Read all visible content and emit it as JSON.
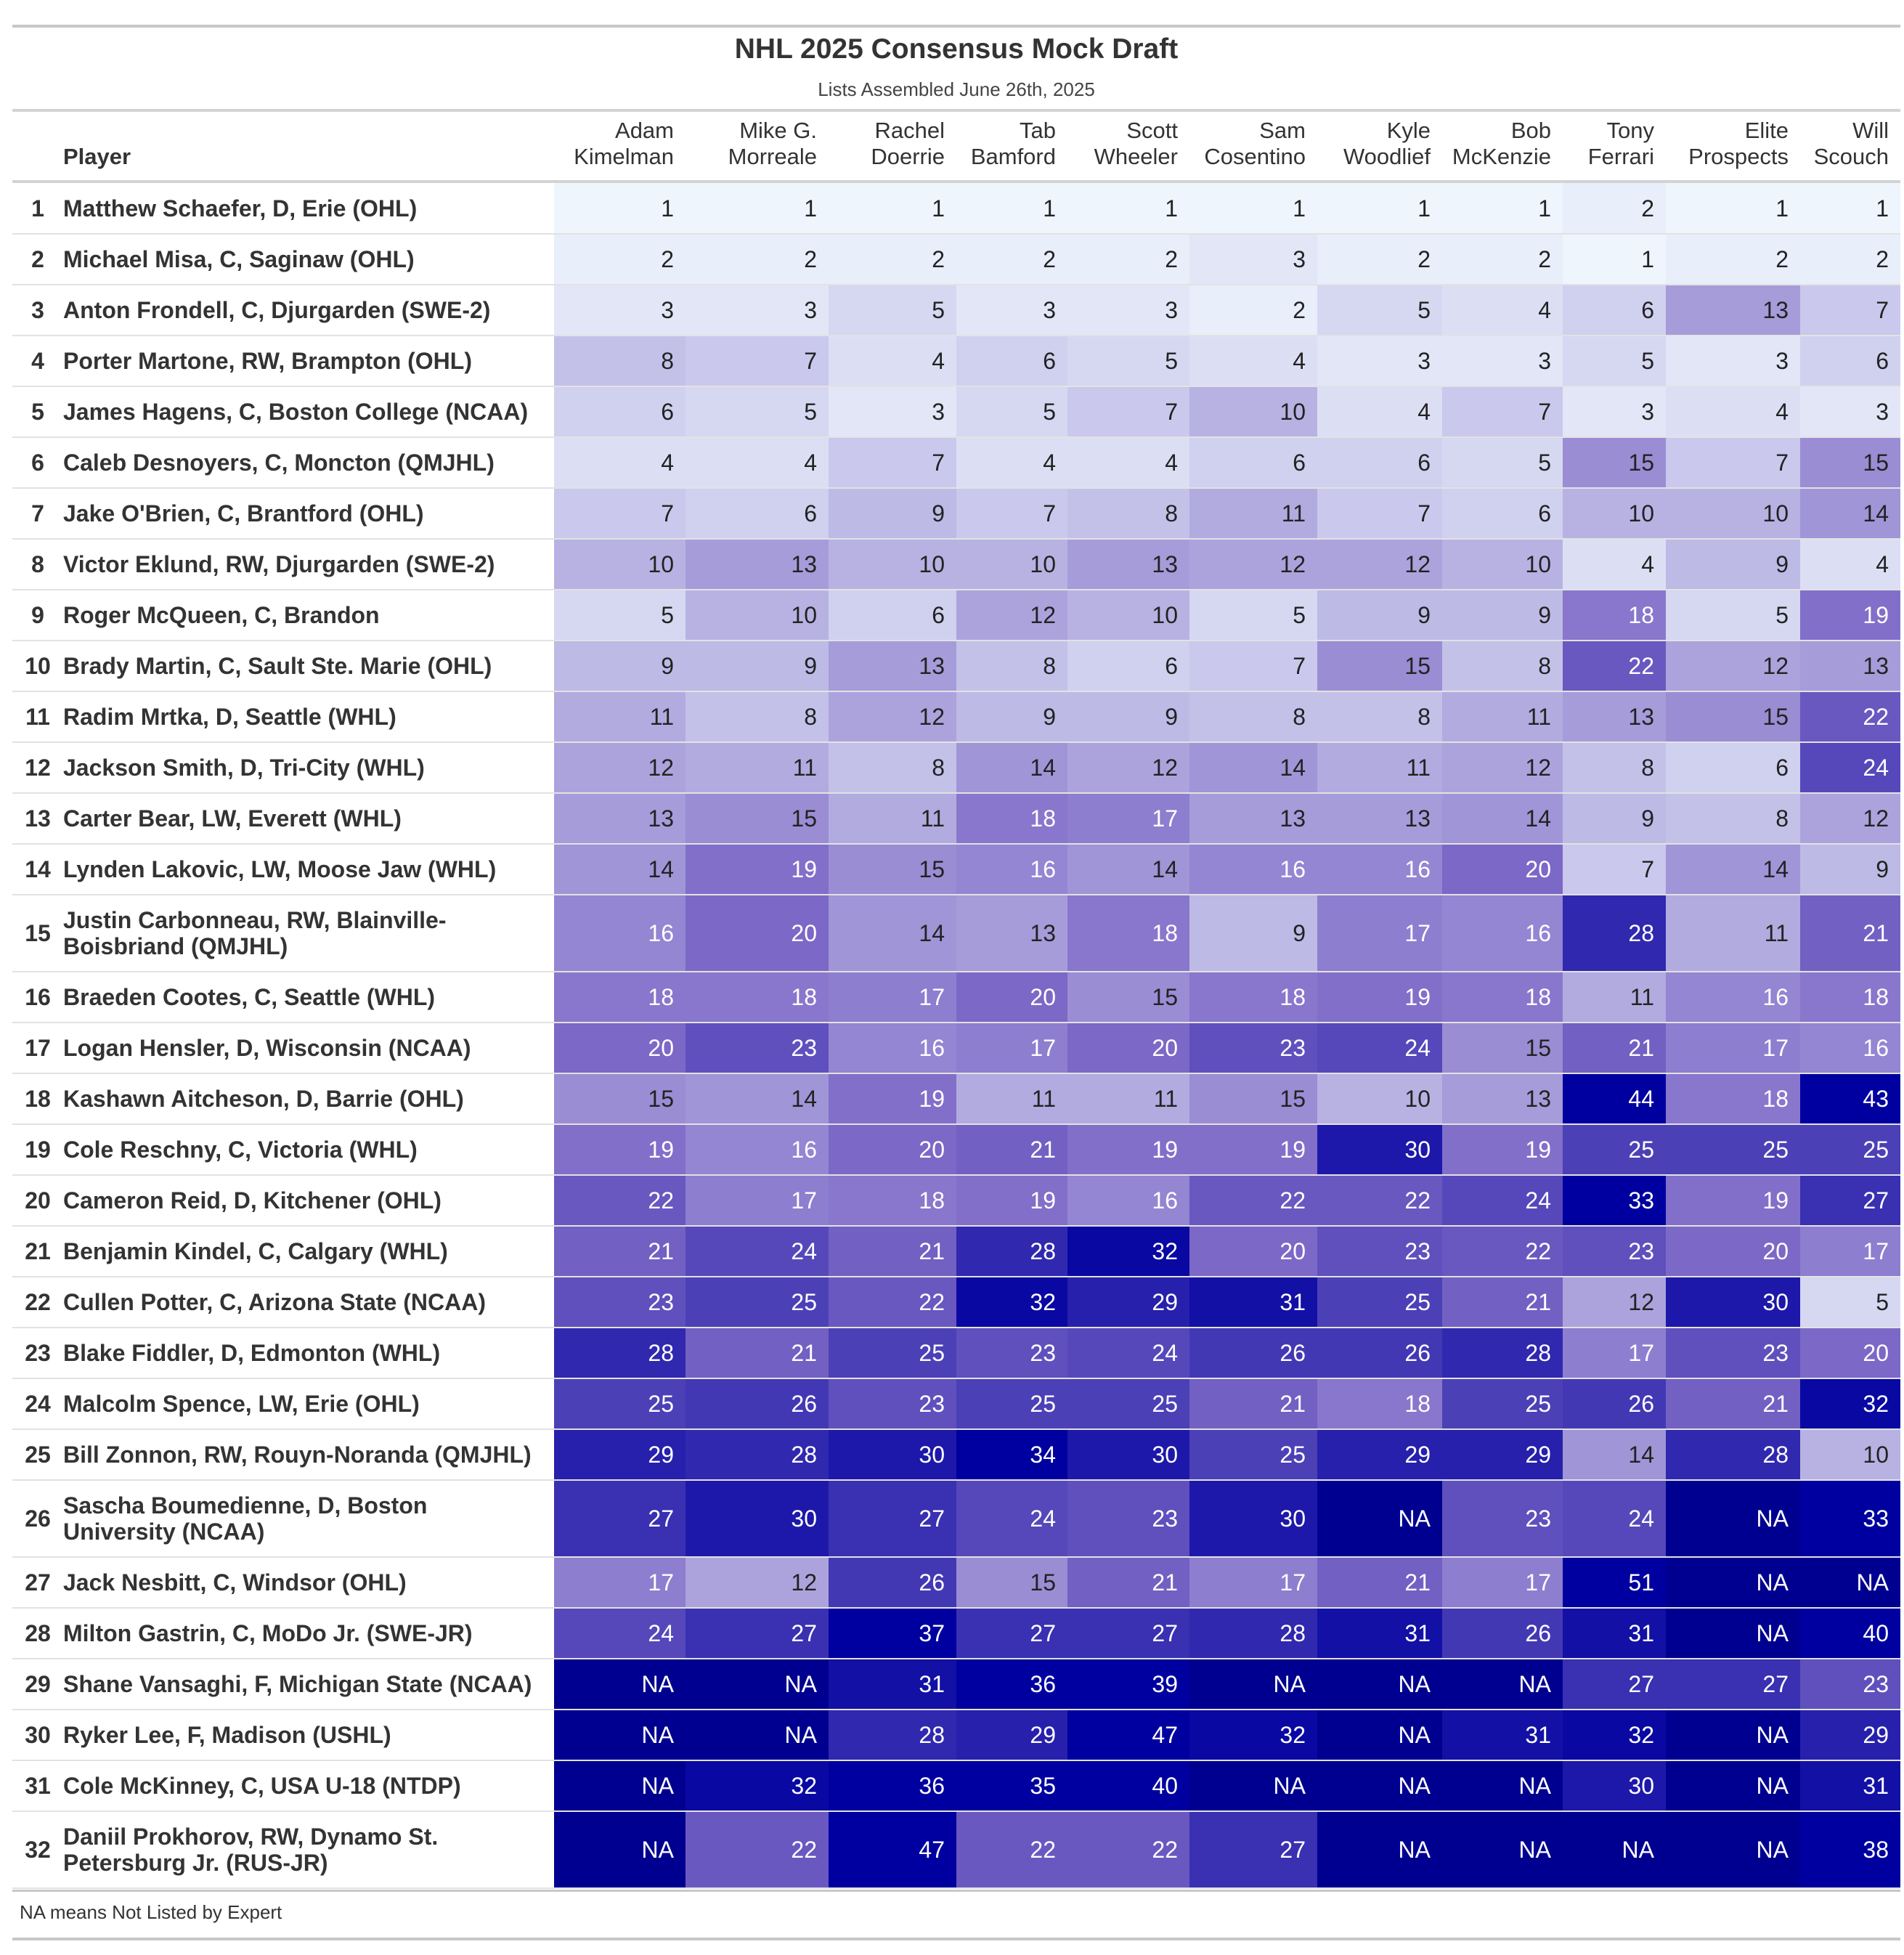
{
  "chart_data": {
    "type": "table",
    "title": "NHL 2025 Consensus Mock Draft",
    "subtitle": "Lists Assembled June 26th, 2025",
    "player_header": "Player",
    "experts": [
      [
        "Adam",
        "Kimelman"
      ],
      [
        "Mike G.",
        "Morreale"
      ],
      [
        "Rachel",
        "Doerrie"
      ],
      [
        "Tab",
        "Bamford"
      ],
      [
        "Scott",
        "Wheeler"
      ],
      [
        "Sam",
        "Cosentino"
      ],
      [
        "Kyle",
        "Woodlief"
      ],
      [
        "Bob",
        "McKenzie"
      ],
      [
        "Tony",
        "Ferrari"
      ],
      [
        "Elite",
        "Prospects"
      ],
      [
        "Will",
        "Scouch"
      ]
    ],
    "rows": [
      {
        "rank": "1",
        "player": [
          "Matthew Schaefer, D, Erie (OHL)"
        ],
        "picks": [
          "1",
          "1",
          "1",
          "1",
          "1",
          "1",
          "1",
          "1",
          "2",
          "1",
          "1"
        ]
      },
      {
        "rank": "2",
        "player": [
          "Michael Misa, C, Saginaw (OHL)"
        ],
        "picks": [
          "2",
          "2",
          "2",
          "2",
          "2",
          "3",
          "2",
          "2",
          "1",
          "2",
          "2"
        ]
      },
      {
        "rank": "3",
        "player": [
          "Anton Frondell, C, Djurgarden (SWE-2)"
        ],
        "picks": [
          "3",
          "3",
          "5",
          "3",
          "3",
          "2",
          "5",
          "4",
          "6",
          "13",
          "7"
        ]
      },
      {
        "rank": "4",
        "player": [
          "Porter Martone, RW, Brampton (OHL)"
        ],
        "picks": [
          "8",
          "7",
          "4",
          "6",
          "5",
          "4",
          "3",
          "3",
          "5",
          "3",
          "6"
        ]
      },
      {
        "rank": "5",
        "player": [
          "James Hagens, C, Boston College (NCAA)"
        ],
        "picks": [
          "6",
          "5",
          "3",
          "5",
          "7",
          "10",
          "4",
          "7",
          "3",
          "4",
          "3"
        ]
      },
      {
        "rank": "6",
        "player": [
          "Caleb Desnoyers, C, Moncton (QMJHL)"
        ],
        "picks": [
          "4",
          "4",
          "7",
          "4",
          "4",
          "6",
          "6",
          "5",
          "15",
          "7",
          "15"
        ]
      },
      {
        "rank": "7",
        "player": [
          "Jake O'Brien, C, Brantford (OHL)"
        ],
        "picks": [
          "7",
          "6",
          "9",
          "7",
          "8",
          "11",
          "7",
          "6",
          "10",
          "10",
          "14"
        ]
      },
      {
        "rank": "8",
        "player": [
          "Victor Eklund, RW, Djurgarden (SWE-2)"
        ],
        "picks": [
          "10",
          "13",
          "10",
          "10",
          "13",
          "12",
          "12",
          "10",
          "4",
          "9",
          "4"
        ]
      },
      {
        "rank": "9",
        "player": [
          "Roger McQueen, C, Brandon"
        ],
        "picks": [
          "5",
          "10",
          "6",
          "12",
          "10",
          "5",
          "9",
          "9",
          "18",
          "5",
          "19"
        ]
      },
      {
        "rank": "10",
        "player": [
          "Brady Martin, C, Sault Ste. Marie (OHL)"
        ],
        "picks": [
          "9",
          "9",
          "13",
          "8",
          "6",
          "7",
          "15",
          "8",
          "22",
          "12",
          "13"
        ]
      },
      {
        "rank": "11",
        "player": [
          "Radim Mrtka, D, Seattle (WHL)"
        ],
        "picks": [
          "11",
          "8",
          "12",
          "9",
          "9",
          "8",
          "8",
          "11",
          "13",
          "15",
          "22"
        ]
      },
      {
        "rank": "12",
        "player": [
          "Jackson Smith, D, Tri-City (WHL)"
        ],
        "picks": [
          "12",
          "11",
          "8",
          "14",
          "12",
          "14",
          "11",
          "12",
          "8",
          "6",
          "24"
        ]
      },
      {
        "rank": "13",
        "player": [
          "Carter Bear, LW, Everett (WHL)"
        ],
        "picks": [
          "13",
          "15",
          "11",
          "18",
          "17",
          "13",
          "13",
          "14",
          "9",
          "8",
          "12"
        ]
      },
      {
        "rank": "14",
        "player": [
          "Lynden Lakovic, LW, Moose Jaw (WHL)"
        ],
        "picks": [
          "14",
          "19",
          "15",
          "16",
          "14",
          "16",
          "16",
          "20",
          "7",
          "14",
          "9"
        ]
      },
      {
        "rank": "15",
        "player": [
          "Justin Carbonneau, RW, Blainville-",
          "Boisbriand (QMJHL)"
        ],
        "picks": [
          "16",
          "20",
          "14",
          "13",
          "18",
          "9",
          "17",
          "16",
          "28",
          "11",
          "21"
        ]
      },
      {
        "rank": "16",
        "player": [
          "Braeden Cootes, C, Seattle (WHL)"
        ],
        "picks": [
          "18",
          "18",
          "17",
          "20",
          "15",
          "18",
          "19",
          "18",
          "11",
          "16",
          "18"
        ]
      },
      {
        "rank": "17",
        "player": [
          "Logan Hensler, D, Wisconsin (NCAA)"
        ],
        "picks": [
          "20",
          "23",
          "16",
          "17",
          "20",
          "23",
          "24",
          "15",
          "21",
          "17",
          "16"
        ]
      },
      {
        "rank": "18",
        "player": [
          "Kashawn Aitcheson, D, Barrie (OHL)"
        ],
        "picks": [
          "15",
          "14",
          "19",
          "11",
          "11",
          "15",
          "10",
          "13",
          "44",
          "18",
          "43"
        ]
      },
      {
        "rank": "19",
        "player": [
          "Cole Reschny, C, Victoria (WHL)"
        ],
        "picks": [
          "19",
          "16",
          "20",
          "21",
          "19",
          "19",
          "30",
          "19",
          "25",
          "25",
          "25"
        ]
      },
      {
        "rank": "20",
        "player": [
          "Cameron Reid, D, Kitchener (OHL)"
        ],
        "picks": [
          "22",
          "17",
          "18",
          "19",
          "16",
          "22",
          "22",
          "24",
          "33",
          "19",
          "27"
        ]
      },
      {
        "rank": "21",
        "player": [
          "Benjamin Kindel, C, Calgary (WHL)"
        ],
        "picks": [
          "21",
          "24",
          "21",
          "28",
          "32",
          "20",
          "23",
          "22",
          "23",
          "20",
          "17"
        ]
      },
      {
        "rank": "22",
        "player": [
          "Cullen Potter, C, Arizona State (NCAA)"
        ],
        "picks": [
          "23",
          "25",
          "22",
          "32",
          "29",
          "31",
          "25",
          "21",
          "12",
          "30",
          "5"
        ]
      },
      {
        "rank": "23",
        "player": [
          "Blake Fiddler, D, Edmonton (WHL)"
        ],
        "picks": [
          "28",
          "21",
          "25",
          "23",
          "24",
          "26",
          "26",
          "28",
          "17",
          "23",
          "20"
        ]
      },
      {
        "rank": "24",
        "player": [
          "Malcolm Spence, LW, Erie (OHL)"
        ],
        "picks": [
          "25",
          "26",
          "23",
          "25",
          "25",
          "21",
          "18",
          "25",
          "26",
          "21",
          "32"
        ]
      },
      {
        "rank": "25",
        "player": [
          "Bill Zonnon, RW, Rouyn-Noranda (QMJHL)"
        ],
        "picks": [
          "29",
          "28",
          "30",
          "34",
          "30",
          "25",
          "29",
          "29",
          "14",
          "28",
          "10"
        ]
      },
      {
        "rank": "26",
        "player": [
          "Sascha Boumedienne, D, Boston",
          "University (NCAA)"
        ],
        "picks": [
          "27",
          "30",
          "27",
          "24",
          "23",
          "30",
          "NA",
          "23",
          "24",
          "NA",
          "33"
        ]
      },
      {
        "rank": "27",
        "player": [
          "Jack Nesbitt, C, Windsor (OHL)"
        ],
        "picks": [
          "17",
          "12",
          "26",
          "15",
          "21",
          "17",
          "21",
          "17",
          "51",
          "NA",
          "NA"
        ]
      },
      {
        "rank": "28",
        "player": [
          "Milton Gastrin, C, MoDo Jr. (SWE-JR)"
        ],
        "picks": [
          "24",
          "27",
          "37",
          "27",
          "27",
          "28",
          "31",
          "26",
          "31",
          "NA",
          "40"
        ]
      },
      {
        "rank": "29",
        "player": [
          "Shane Vansaghi, F, Michigan State (NCAA)"
        ],
        "picks": [
          "NA",
          "NA",
          "31",
          "36",
          "39",
          "NA",
          "NA",
          "NA",
          "27",
          "27",
          "23"
        ]
      },
      {
        "rank": "30",
        "player": [
          "Ryker Lee, F, Madison (USHL)"
        ],
        "picks": [
          "NA",
          "NA",
          "28",
          "29",
          "47",
          "32",
          "NA",
          "31",
          "32",
          "NA",
          "29"
        ]
      },
      {
        "rank": "31",
        "player": [
          "Cole McKinney, C, USA U-18 (NTDP)"
        ],
        "picks": [
          "NA",
          "32",
          "36",
          "35",
          "40",
          "NA",
          "NA",
          "NA",
          "30",
          "NA",
          "31"
        ]
      },
      {
        "rank": "32",
        "player": [
          "Daniil Prokhorov, RW, Dynamo St.",
          "Petersburg Jr. (RUS-JR)"
        ],
        "picks": [
          "NA",
          "22",
          "47",
          "22",
          "22",
          "27",
          "NA",
          "NA",
          "NA",
          "NA",
          "38"
        ]
      }
    ],
    "footnote": "NA means Not Listed by Expert",
    "colors": {
      "low": "#eef5fd",
      "mid": "#7c68c6",
      "high": "#0000a0",
      "na": "#000090"
    }
  }
}
